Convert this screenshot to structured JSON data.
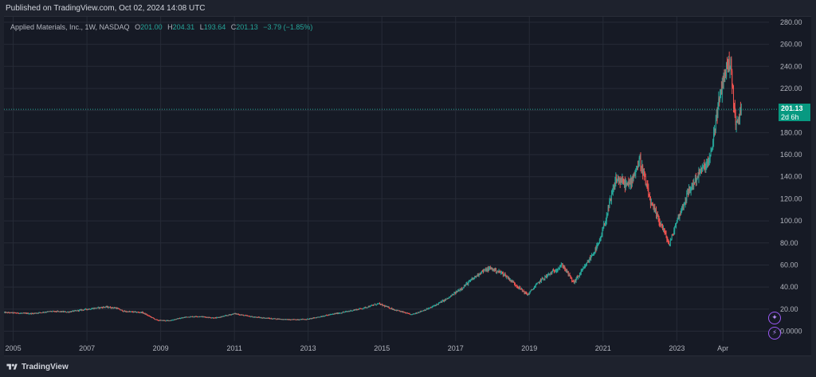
{
  "header": {
    "published": "Published on TradingView.com, Oct 02, 2024 14:08 UTC"
  },
  "legend": {
    "symbol": "Applied Materials, Inc., 1W, NASDAQ",
    "open_label": "O",
    "open": "201.00",
    "high_label": "H",
    "high": "204.31",
    "low_label": "L",
    "low": "193.64",
    "close_label": "C",
    "close": "201.13",
    "change": "−3.79 (−1.85%)"
  },
  "price_badge": {
    "price": "201.13",
    "countdown": "2d 6h"
  },
  "footer": {
    "brand": "TradingView"
  },
  "colors": {
    "up": "#26a69a",
    "down": "#ef5350",
    "background": "#161a25",
    "grid": "#262b37",
    "accent": "#089981",
    "event": "#9b59f5"
  },
  "icons": [
    "tradingview-logo-icon",
    "dividend-event-icon",
    "earnings-event-icon"
  ],
  "chart_data": {
    "type": "candlestick",
    "interval": "1W",
    "y_axis": {
      "ticks": [
        "280.00",
        "260.00",
        "240.00",
        "220.00",
        "200.00",
        "180.00",
        "160.00",
        "140.00",
        "120.00",
        "100.00",
        "80.00",
        "60.00",
        "40.00",
        "20.00",
        "0.0000"
      ],
      "range": [
        -9,
        285
      ],
      "side": "right"
    },
    "x_axis": {
      "ticks": [
        {
          "label": "2005",
          "t": 2005.0
        },
        {
          "label": "2007",
          "t": 2007.0
        },
        {
          "label": "2009",
          "t": 2009.0
        },
        {
          "label": "2011",
          "t": 2011.0
        },
        {
          "label": "2013",
          "t": 2013.0
        },
        {
          "label": "2015",
          "t": 2015.0
        },
        {
          "label": "2017",
          "t": 2017.0
        },
        {
          "label": "2019",
          "t": 2019.0
        },
        {
          "label": "2021",
          "t": 2021.0
        },
        {
          "label": "2023",
          "t": 2023.0
        },
        {
          "label": "Apr",
          "t": 2024.25
        }
      ],
      "range": [
        2004.75,
        2025.5
      ]
    },
    "last_price": 201.13,
    "grid": true,
    "price_path": [
      [
        2004.75,
        17
      ],
      [
        2005.5,
        16
      ],
      [
        2006.0,
        18
      ],
      [
        2006.5,
        17.5
      ],
      [
        2007.0,
        20
      ],
      [
        2007.5,
        22
      ],
      [
        2007.8,
        21
      ],
      [
        2008.0,
        18
      ],
      [
        2008.5,
        17
      ],
      [
        2008.9,
        10
      ],
      [
        2009.2,
        9.5
      ],
      [
        2009.7,
        13
      ],
      [
        2010.0,
        13.5
      ],
      [
        2010.5,
        12
      ],
      [
        2011.0,
        16
      ],
      [
        2011.5,
        13
      ],
      [
        2012.0,
        11.5
      ],
      [
        2012.5,
        10.5
      ],
      [
        2013.0,
        11
      ],
      [
        2013.5,
        14.5
      ],
      [
        2014.0,
        17.5
      ],
      [
        2014.5,
        21
      ],
      [
        2014.9,
        25
      ],
      [
        2015.3,
        20
      ],
      [
        2015.8,
        15
      ],
      [
        2016.3,
        21
      ],
      [
        2016.8,
        30
      ],
      [
        2017.2,
        40
      ],
      [
        2017.7,
        54
      ],
      [
        2017.95,
        57
      ],
      [
        2018.3,
        52
      ],
      [
        2018.7,
        40
      ],
      [
        2018.95,
        33
      ],
      [
        2019.3,
        46
      ],
      [
        2019.9,
        60
      ],
      [
        2020.2,
        44
      ],
      [
        2020.5,
        58
      ],
      [
        2020.9,
        80
      ],
      [
        2021.1,
        105
      ],
      [
        2021.35,
        138
      ],
      [
        2021.7,
        132
      ],
      [
        2022.0,
        155
      ],
      [
        2022.3,
        115
      ],
      [
        2022.6,
        95
      ],
      [
        2022.8,
        78
      ],
      [
        2023.0,
        100
      ],
      [
        2023.3,
        125
      ],
      [
        2023.6,
        143
      ],
      [
        2023.9,
        155
      ],
      [
        2024.1,
        200
      ],
      [
        2024.3,
        235
      ],
      [
        2024.45,
        245
      ],
      [
        2024.6,
        185
      ],
      [
        2024.75,
        201.13
      ]
    ],
    "annotations": [
      {
        "type": "price-line",
        "value": 201.13,
        "label": "201.13",
        "countdown": "2d 6h"
      }
    ]
  }
}
